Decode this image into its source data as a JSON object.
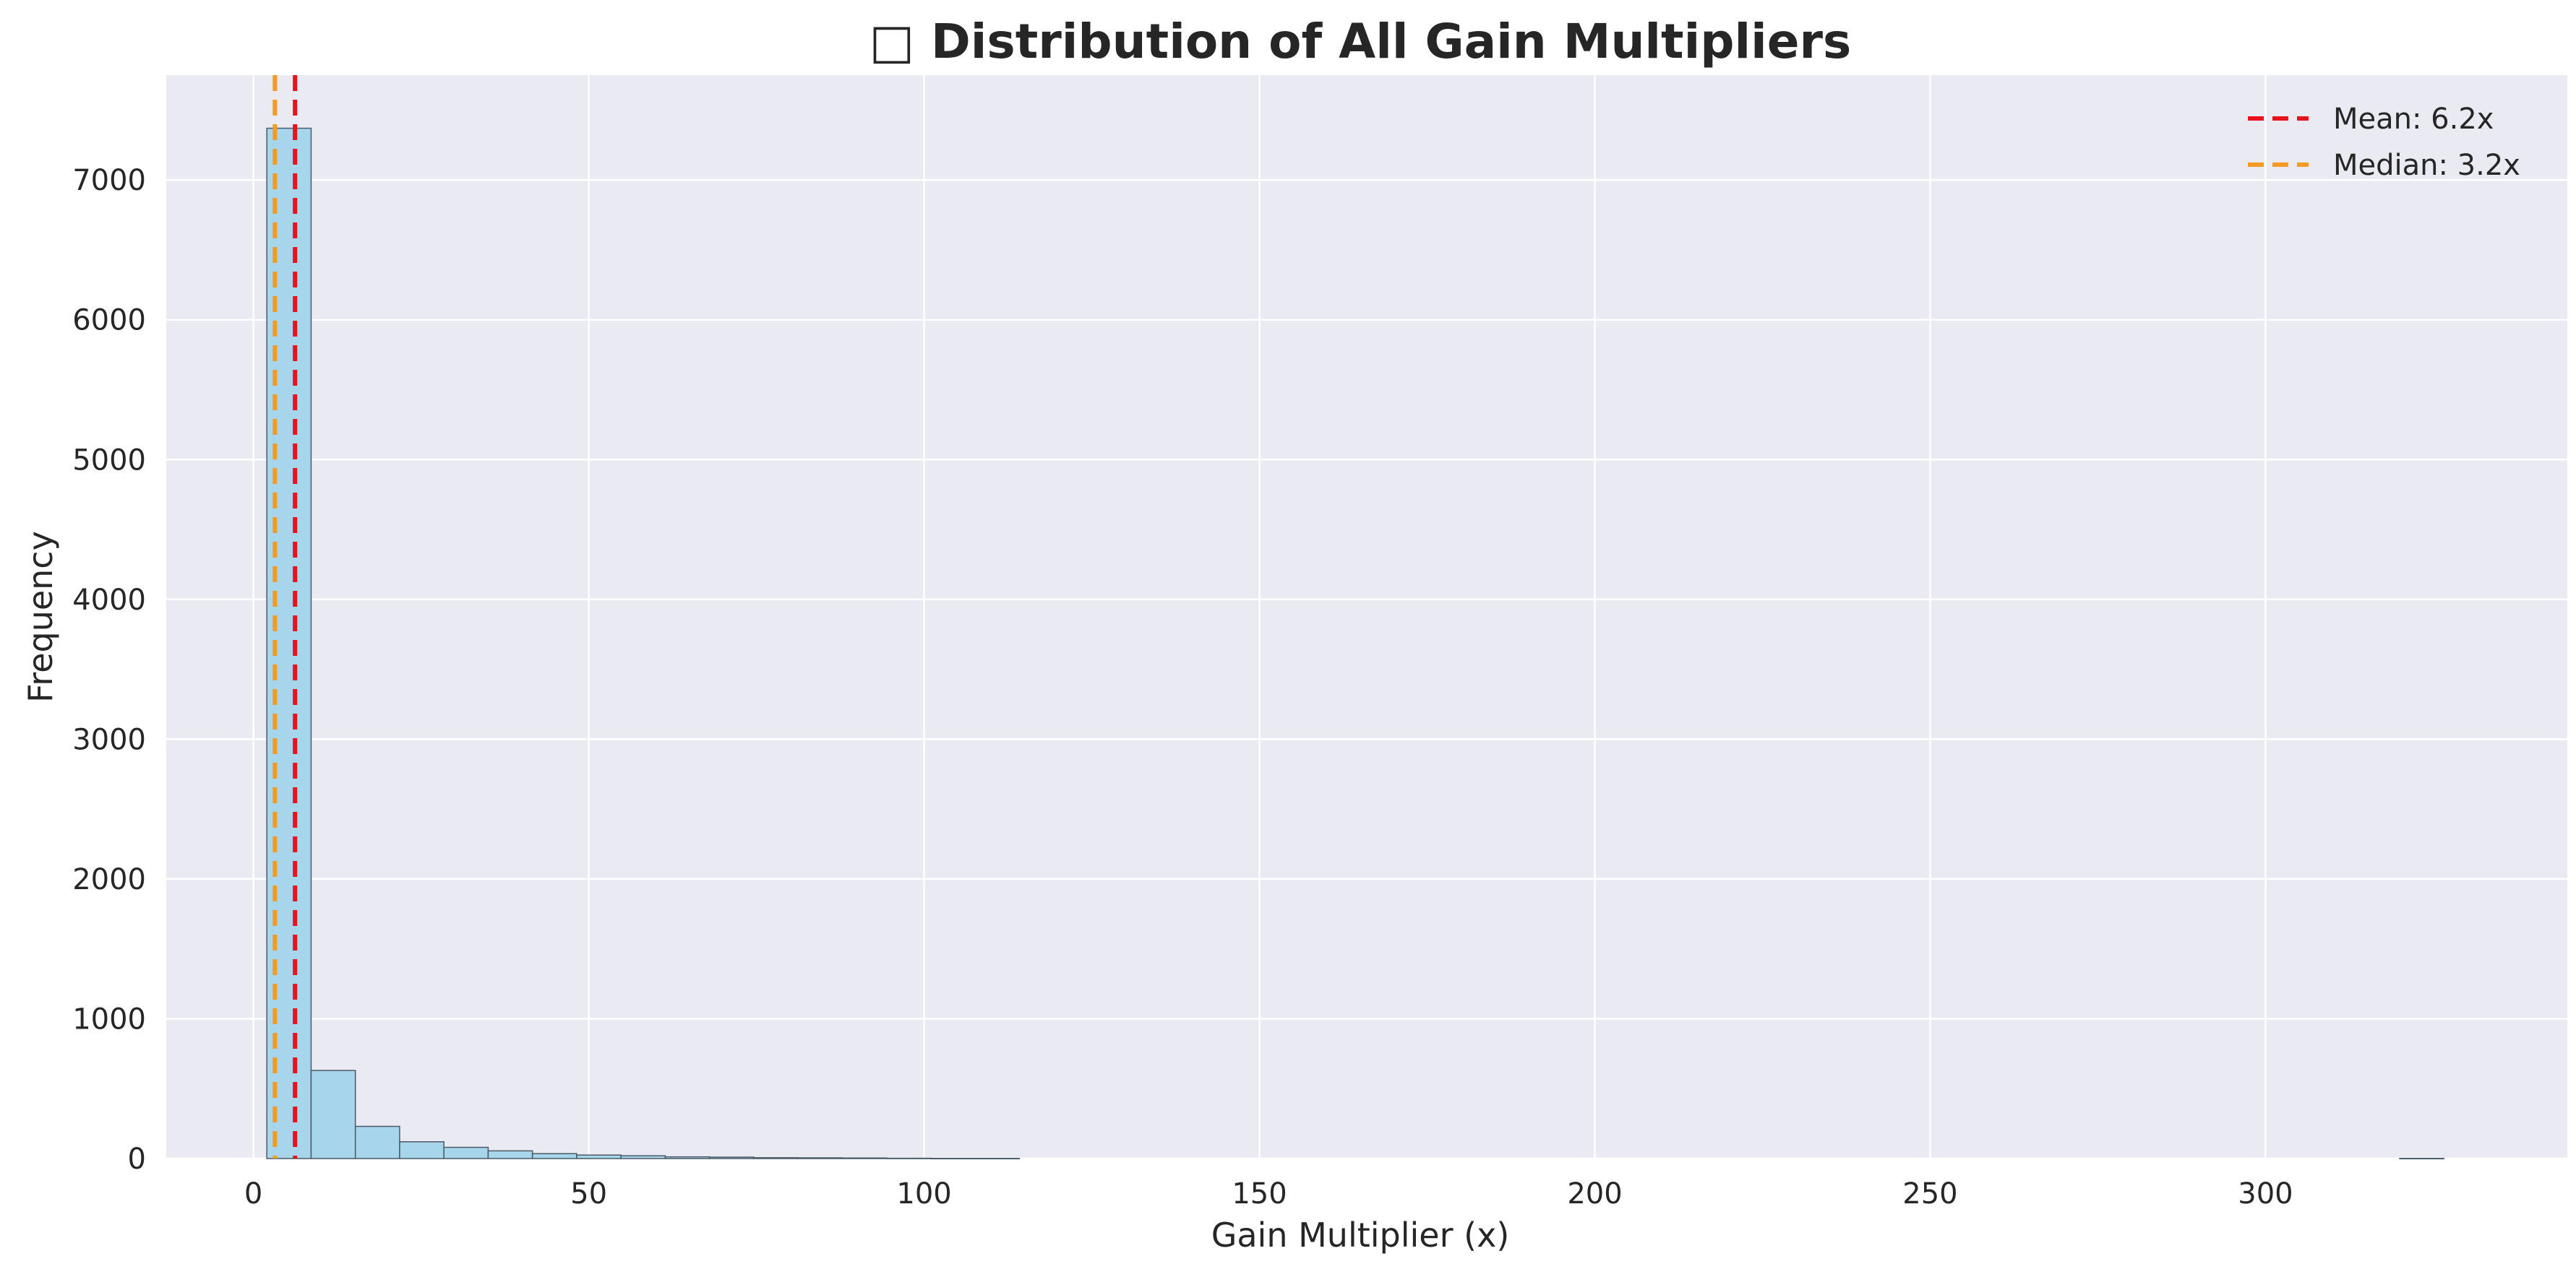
{
  "chart_data": {
    "type": "bar",
    "title": "□ Distribution of All Gain Multipliers",
    "xlabel": "Gain Multiplier (x)",
    "ylabel": "Frequency",
    "xlim": [
      -13,
      345
    ],
    "ylim": [
      0,
      7750
    ],
    "xticks": [
      0,
      50,
      100,
      150,
      200,
      250,
      300
    ],
    "yticks": [
      0,
      1000,
      2000,
      3000,
      4000,
      5000,
      6000,
      7000
    ],
    "grid": true,
    "legend_position": "top-right",
    "colors": {
      "plot_bg": "#eaeaf2",
      "grid": "#ffffff",
      "bar_fill": "#a7d5ec",
      "bar_edge": "#4a5a66",
      "mean_line": "#e8121c",
      "median_line": "#f59a23",
      "text": "#262626"
    },
    "bins": [
      {
        "x0": 2.0,
        "x1": 8.6,
        "count": 7370
      },
      {
        "x0": 8.6,
        "x1": 15.2,
        "count": 630
      },
      {
        "x0": 15.2,
        "x1": 21.8,
        "count": 230
      },
      {
        "x0": 21.8,
        "x1": 28.4,
        "count": 120
      },
      {
        "x0": 28.4,
        "x1": 35.0,
        "count": 80
      },
      {
        "x0": 35.0,
        "x1": 41.6,
        "count": 55
      },
      {
        "x0": 41.6,
        "x1": 48.2,
        "count": 35
      },
      {
        "x0": 48.2,
        "x1": 54.8,
        "count": 25
      },
      {
        "x0": 54.8,
        "x1": 61.4,
        "count": 20
      },
      {
        "x0": 61.4,
        "x1": 68.0,
        "count": 12
      },
      {
        "x0": 68.0,
        "x1": 74.6,
        "count": 10
      },
      {
        "x0": 74.6,
        "x1": 81.2,
        "count": 6
      },
      {
        "x0": 81.2,
        "x1": 87.8,
        "count": 5
      },
      {
        "x0": 87.8,
        "x1": 94.4,
        "count": 4
      },
      {
        "x0": 94.4,
        "x1": 101.0,
        "count": 2
      },
      {
        "x0": 101.0,
        "x1": 107.6,
        "count": 1
      },
      {
        "x0": 107.6,
        "x1": 114.2,
        "count": 1
      },
      {
        "x0": 320.0,
        "x1": 326.6,
        "count": 1
      }
    ],
    "reference_lines": [
      {
        "name": "Mean: 6.2x",
        "value": 6.2,
        "color": "#e8121c"
      },
      {
        "name": "Median: 3.2x",
        "value": 3.2,
        "color": "#f59a23"
      }
    ]
  }
}
